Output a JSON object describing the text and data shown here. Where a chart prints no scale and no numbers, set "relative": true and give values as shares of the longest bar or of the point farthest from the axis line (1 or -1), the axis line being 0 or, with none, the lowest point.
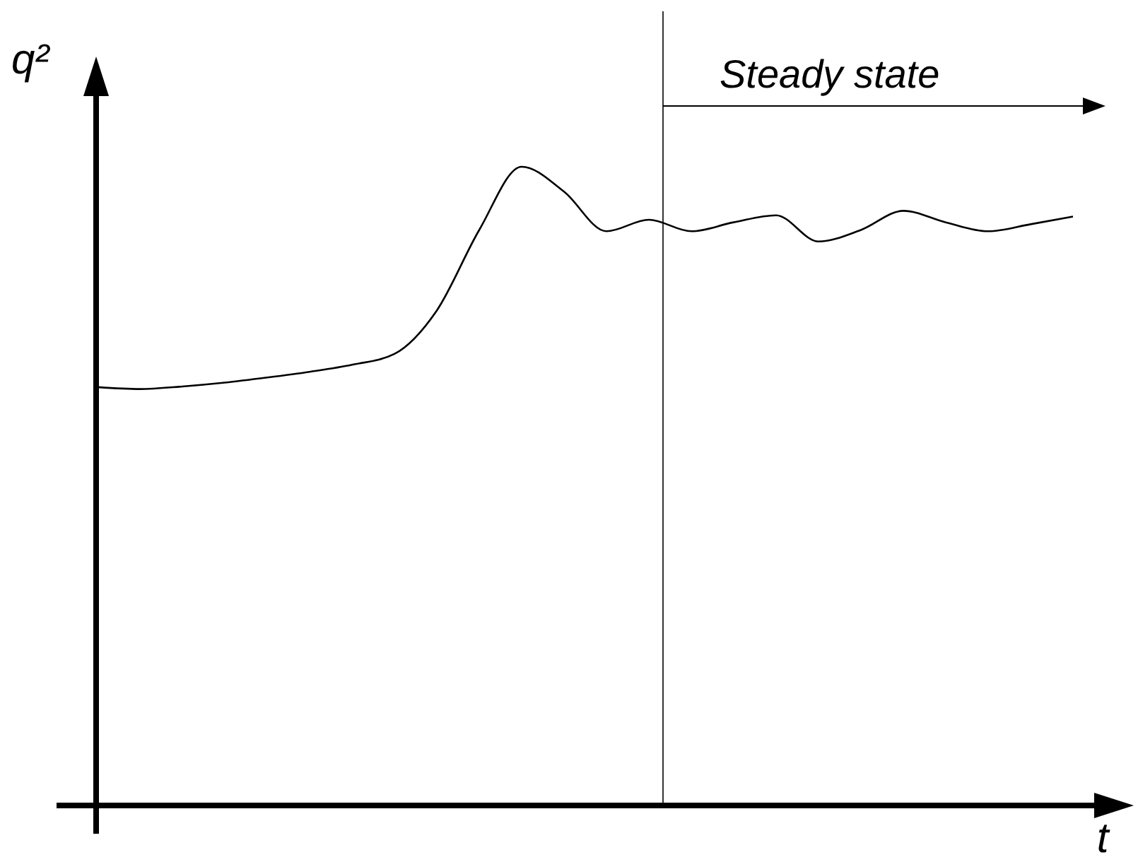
{
  "chart_data": {
    "type": "line",
    "relative": true,
    "xlabel": "t",
    "ylabel": "q²",
    "categories": [
      null,
      null,
      null,
      null,
      null,
      null,
      null,
      null,
      null,
      null,
      null,
      null,
      null,
      null,
      null,
      null,
      null,
      null,
      null,
      null,
      null,
      null,
      null,
      null
    ],
    "series": [
      {
        "color": "#000000",
        "values": [
          0.655,
          0.652,
          0.656,
          0.662,
          0.67,
          0.679,
          0.69,
          0.707,
          0.775,
          0.901,
          1.0,
          0.961,
          0.899,
          0.917,
          0.899,
          0.913,
          0.924,
          0.883,
          0.901,
          0.931,
          0.913,
          0.899,
          0.91,
          0.922
        ]
      }
    ],
    "annotations": [
      "Steady state"
    ],
    "line_style": "solid"
  }
}
